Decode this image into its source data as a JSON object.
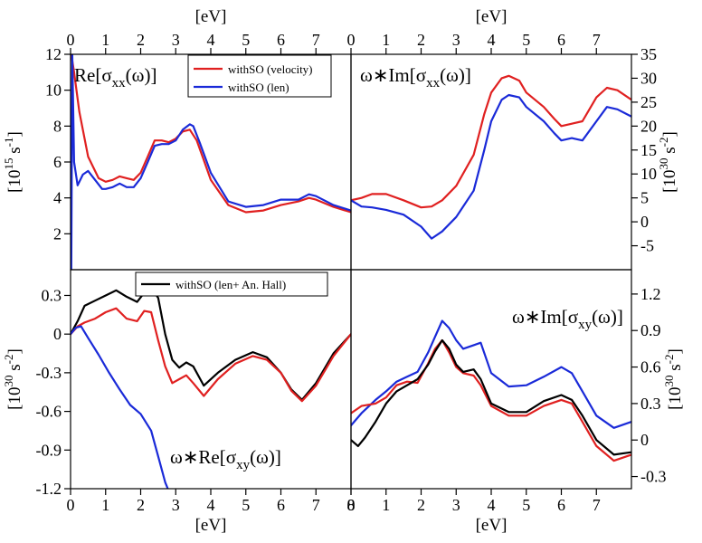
{
  "chart_data": [
    {
      "id": "top_left",
      "type": "line",
      "title": "Re[σxx(ω)]",
      "title_main": "Re[σ",
      "title_sub": "xx",
      "title_tail": "(ω)]",
      "xlabel_top": "[eV]",
      "ylabel": "[10^15 s^-1]",
      "ylabel_main": "[10",
      "ylabel_sup1": "15",
      "ylabel_mid": " s",
      "ylabel_sup2": "-1",
      "ylabel_tail": "]",
      "xlim": [
        0,
        8
      ],
      "ylim": [
        0,
        12
      ],
      "x_ticks": [
        0,
        1,
        2,
        3,
        4,
        5,
        6,
        7
      ],
      "y_ticks": [
        2,
        4,
        6,
        8,
        10,
        12
      ],
      "legend": {
        "position": "top-right",
        "entries": [
          "withSO (velocity)",
          "withSO (len)"
        ]
      },
      "series": [
        {
          "name": "withSO (velocity)",
          "color": "#e02020",
          "x": [
            0.02,
            0.1,
            0.25,
            0.5,
            0.8,
            1.0,
            1.2,
            1.4,
            1.6,
            1.8,
            2.0,
            2.2,
            2.4,
            2.6,
            2.8,
            3.0,
            3.2,
            3.4,
            3.6,
            3.8,
            4.0,
            4.5,
            5.0,
            5.5,
            6.0,
            6.5,
            6.8,
            7.0,
            7.5,
            8.0
          ],
          "y": [
            12.0,
            11.0,
            8.8,
            6.3,
            5.1,
            4.9,
            5.0,
            5.2,
            5.1,
            5.0,
            5.4,
            6.3,
            7.2,
            7.2,
            7.1,
            7.3,
            7.7,
            7.8,
            7.2,
            6.1,
            5.0,
            3.6,
            3.2,
            3.3,
            3.6,
            3.8,
            4.0,
            3.9,
            3.5,
            3.2
          ]
        },
        {
          "name": "withSO (len)",
          "color": "#1a2ad8",
          "x": [
            0.02,
            0.05,
            0.1,
            0.2,
            0.35,
            0.5,
            0.7,
            0.9,
            1.0,
            1.2,
            1.4,
            1.6,
            1.8,
            2.0,
            2.2,
            2.4,
            2.6,
            2.8,
            3.0,
            3.2,
            3.4,
            3.5,
            3.7,
            4.0,
            4.5,
            5.0,
            5.5,
            6.0,
            6.5,
            6.8,
            7.0,
            7.5,
            8.0
          ],
          "y": [
            0.0,
            12.0,
            6.0,
            4.7,
            5.3,
            5.5,
            5.0,
            4.5,
            4.5,
            4.6,
            4.8,
            4.6,
            4.6,
            5.1,
            6.0,
            6.9,
            7.0,
            7.0,
            7.2,
            7.8,
            8.1,
            8.0,
            7.0,
            5.4,
            3.8,
            3.5,
            3.6,
            3.9,
            3.9,
            4.2,
            4.1,
            3.6,
            3.3
          ]
        }
      ]
    },
    {
      "id": "top_right",
      "type": "line",
      "title": "ω*Im[σxx(ω)]",
      "title_main": "ω∗Im[σ",
      "title_sub": "xx",
      "title_tail": "(ω)]",
      "xlabel_top": "[eV]",
      "ylabel": "[10^30 s^-2]",
      "ylabel_main": "[10",
      "ylabel_sup1": "30",
      "ylabel_mid": " s",
      "ylabel_sup2": "-2",
      "ylabel_tail": "]",
      "xlim": [
        0,
        8
      ],
      "ylim": [
        -10,
        35
      ],
      "x_ticks": [
        0,
        1,
        2,
        3,
        4,
        5,
        6,
        7
      ],
      "y_ticks": [
        -5,
        0,
        5,
        10,
        15,
        20,
        25,
        30,
        35
      ],
      "series": [
        {
          "name": "withSO (velocity)",
          "color": "#e02020",
          "x": [
            0,
            0.3,
            0.6,
            1.0,
            1.5,
            2.0,
            2.3,
            2.6,
            3.0,
            3.5,
            3.8,
            4.0,
            4.3,
            4.5,
            4.8,
            5.0,
            5.5,
            5.8,
            6.0,
            6.3,
            6.6,
            7.0,
            7.3,
            7.6,
            8.0
          ],
          "y": [
            4.5,
            5.0,
            5.8,
            5.8,
            4.5,
            3.0,
            3.2,
            4.5,
            7.5,
            14.0,
            22.5,
            27.0,
            30.0,
            30.5,
            29.5,
            27.0,
            24.0,
            21.5,
            20.0,
            20.5,
            21.0,
            26.0,
            28.0,
            27.5,
            25.5
          ]
        },
        {
          "name": "withSO (len)",
          "color": "#1a2ad8",
          "x": [
            0,
            0.3,
            0.6,
            1.0,
            1.5,
            2.0,
            2.3,
            2.6,
            3.0,
            3.5,
            3.8,
            4.0,
            4.3,
            4.5,
            4.8,
            5.0,
            5.5,
            5.8,
            6.0,
            6.3,
            6.6,
            7.0,
            7.3,
            7.6,
            8.0
          ],
          "y": [
            4.5,
            3.2,
            3.0,
            2.5,
            1.5,
            -1.0,
            -3.5,
            -2.0,
            1.0,
            6.5,
            15.0,
            21.0,
            25.5,
            26.5,
            26.0,
            24.0,
            21.0,
            18.5,
            17.0,
            17.5,
            17.0,
            21.0,
            24.0,
            23.5,
            22.0
          ]
        }
      ]
    },
    {
      "id": "bottom_left",
      "type": "line",
      "title": "ω*Re[σxy(ω)]",
      "title_main": "ω∗Re[σ",
      "title_sub": "xy",
      "title_tail": "(ω)]",
      "xlabel_bottom": "[eV]",
      "ylabel": "[10^30 s^-2]",
      "ylabel_main": "[10",
      "ylabel_sup1": "30",
      "ylabel_mid": " s",
      "ylabel_sup2": "-2",
      "ylabel_tail": "]",
      "xlim": [
        0,
        8
      ],
      "ylim": [
        -1.2,
        0.5
      ],
      "x_ticks": [
        0,
        1,
        2,
        3,
        4,
        5,
        6,
        7,
        8
      ],
      "y_ticks": [
        -1.2,
        -0.9,
        -0.6,
        -0.3,
        0,
        0.3
      ],
      "legend": {
        "position": "top-right",
        "entries": [
          "withSO (len+ An. Hall)"
        ]
      },
      "series": [
        {
          "name": "withSO (len+ An. Hall)",
          "color": "#000000",
          "x": [
            0,
            0.2,
            0.4,
            0.7,
            1.0,
            1.3,
            1.6,
            1.9,
            2.1,
            2.3,
            2.5,
            2.7,
            2.9,
            3.1,
            3.3,
            3.5,
            3.8,
            4.2,
            4.7,
            5.2,
            5.6,
            6.0,
            6.3,
            6.6,
            7.0,
            7.5,
            8.0
          ],
          "y": [
            0.0,
            0.1,
            0.22,
            0.26,
            0.3,
            0.34,
            0.29,
            0.25,
            0.32,
            0.36,
            0.28,
            0.0,
            -0.2,
            -0.26,
            -0.22,
            -0.25,
            -0.4,
            -0.3,
            -0.2,
            -0.14,
            -0.18,
            -0.3,
            -0.43,
            -0.51,
            -0.38,
            -0.15,
            0.0
          ]
        },
        {
          "name": "withSO (velocity)",
          "color": "#e02020",
          "x": [
            0,
            0.2,
            0.4,
            0.7,
            1.0,
            1.3,
            1.6,
            1.9,
            2.1,
            2.3,
            2.5,
            2.7,
            2.9,
            3.1,
            3.3,
            3.5,
            3.8,
            4.2,
            4.7,
            5.2,
            5.6,
            6.0,
            6.3,
            6.6,
            7.0,
            7.5,
            8.0
          ],
          "y": [
            0.0,
            0.06,
            0.09,
            0.12,
            0.17,
            0.2,
            0.12,
            0.1,
            0.18,
            0.17,
            -0.05,
            -0.25,
            -0.38,
            -0.35,
            -0.32,
            -0.38,
            -0.48,
            -0.35,
            -0.23,
            -0.17,
            -0.2,
            -0.3,
            -0.44,
            -0.52,
            -0.4,
            -0.17,
            0.0
          ]
        },
        {
          "name": "withSO (len)",
          "color": "#1a2ad8",
          "x": [
            0,
            0.15,
            0.3,
            0.5,
            0.8,
            1.1,
            1.4,
            1.7,
            2.0,
            2.3,
            2.5,
            2.7,
            2.85
          ],
          "y": [
            0.0,
            0.05,
            0.06,
            -0.03,
            -0.16,
            -0.3,
            -0.43,
            -0.55,
            -0.62,
            -0.75,
            -0.95,
            -1.15,
            -1.25
          ]
        }
      ]
    },
    {
      "id": "bottom_right",
      "type": "line",
      "title": "ω*Im[σxy(ω)]",
      "title_main": "ω∗Im[σ",
      "title_sub": "xy",
      "title_tail": "(ω)]",
      "xlabel_bottom": "[eV]",
      "ylabel": "[10^30 s^-2]",
      "ylabel_main": "[10",
      "ylabel_sup1": "30",
      "ylabel_mid": " s",
      "ylabel_sup2": "-2",
      "ylabel_tail": "]",
      "xlim": [
        0,
        8
      ],
      "ylim": [
        -0.4,
        1.4
      ],
      "x_ticks": [
        0,
        1,
        2,
        3,
        4,
        5,
        6,
        7
      ],
      "y_ticks": [
        -0.3,
        0,
        0.3,
        0.6,
        0.9,
        1.2
      ],
      "series": [
        {
          "name": "withSO (len)",
          "color": "#1a2ad8",
          "x": [
            0,
            0.3,
            0.7,
            1.0,
            1.3,
            1.6,
            1.9,
            2.2,
            2.4,
            2.6,
            2.8,
            3.0,
            3.2,
            3.5,
            3.7,
            4.0,
            4.5,
            5.0,
            5.5,
            6.0,
            6.3,
            6.6,
            7.0,
            7.5,
            8.0
          ],
          "y": [
            0.12,
            0.22,
            0.33,
            0.4,
            0.48,
            0.52,
            0.56,
            0.72,
            0.85,
            0.98,
            0.92,
            0.82,
            0.75,
            0.78,
            0.8,
            0.55,
            0.44,
            0.45,
            0.52,
            0.6,
            0.55,
            0.4,
            0.2,
            0.1,
            0.15
          ]
        },
        {
          "name": "withSO (velocity)",
          "color": "#e02020",
          "x": [
            0,
            0.3,
            0.7,
            1.0,
            1.3,
            1.6,
            1.9,
            2.2,
            2.4,
            2.6,
            2.8,
            3.0,
            3.2,
            3.5,
            3.7,
            4.0,
            4.5,
            5.0,
            5.5,
            6.0,
            6.3,
            6.6,
            7.0,
            7.5,
            8.0
          ],
          "y": [
            0.22,
            0.28,
            0.3,
            0.35,
            0.45,
            0.48,
            0.47,
            0.63,
            0.75,
            0.82,
            0.72,
            0.6,
            0.55,
            0.53,
            0.45,
            0.28,
            0.2,
            0.2,
            0.28,
            0.33,
            0.3,
            0.15,
            -0.05,
            -0.17,
            -0.12
          ]
        },
        {
          "name": "withSO (len+ An. Hall)",
          "color": "#000000",
          "x": [
            0,
            0.2,
            0.4,
            0.7,
            1.0,
            1.3,
            1.6,
            1.9,
            2.2,
            2.4,
            2.6,
            2.8,
            3.0,
            3.2,
            3.5,
            3.7,
            4.0,
            4.5,
            5.0,
            5.5,
            6.0,
            6.3,
            6.6,
            7.0,
            7.5,
            8.0
          ],
          "y": [
            0.0,
            -0.05,
            0.02,
            0.15,
            0.3,
            0.4,
            0.45,
            0.5,
            0.62,
            0.73,
            0.82,
            0.75,
            0.62,
            0.56,
            0.58,
            0.5,
            0.3,
            0.23,
            0.23,
            0.32,
            0.37,
            0.33,
            0.2,
            0.0,
            -0.12,
            -0.1
          ]
        }
      ]
    }
  ]
}
